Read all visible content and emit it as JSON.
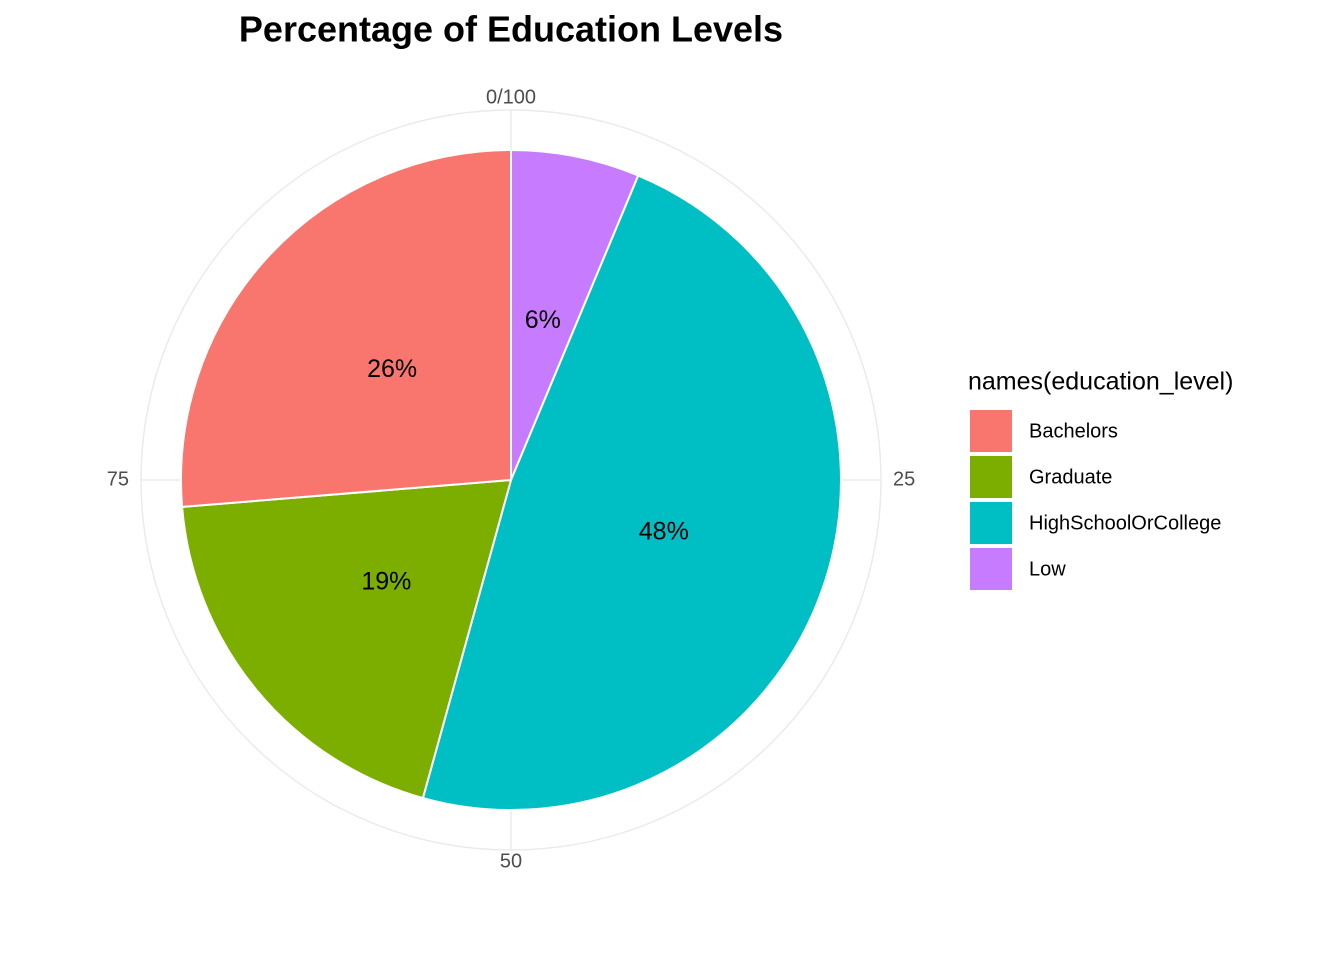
{
  "chart_data": {
    "type": "pie",
    "title": "Percentage of Education Levels",
    "legend_title": "names(education_level)",
    "categories": [
      "Bachelors",
      "Graduate",
      "HighSchoolOrCollege",
      "Low"
    ],
    "values": [
      26.3,
      19.4,
      48,
      6.3
    ],
    "value_labels": [
      "26%",
      "19%",
      "48%",
      "6%"
    ],
    "colors": [
      "#F8766D",
      "#7CAE00",
      "#00BFC4",
      "#C77CFF"
    ],
    "ylim": [
      0,
      100
    ],
    "yticks": [
      {
        "value": 0,
        "label": "0/100"
      },
      25,
      50,
      75
    ],
    "grid": true,
    "legend": "right"
  }
}
